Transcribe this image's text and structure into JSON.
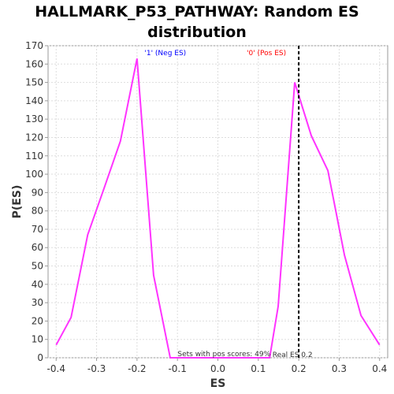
{
  "chart_data": {
    "type": "line",
    "title": "HALLMARK_P53_PATHWAY: Random ES distribution",
    "xlabel": "ES",
    "ylabel": "P(ES)",
    "xlim": [
      -0.42,
      0.42
    ],
    "ylim": [
      0,
      170
    ],
    "xticks": [
      -0.4,
      -0.3,
      -0.2,
      -0.1,
      0.0,
      0.1,
      0.2,
      0.3,
      0.4
    ],
    "xtick_labels": [
      "-0.4",
      "-0.3",
      "-0.2",
      "-0.1",
      "0.0",
      "0.1",
      "0.2",
      "0.3",
      "0.4"
    ],
    "yticks": [
      0,
      10,
      20,
      30,
      40,
      50,
      60,
      70,
      80,
      90,
      100,
      110,
      120,
      130,
      140,
      150,
      160,
      170
    ],
    "ytick_labels": [
      "0",
      "10",
      "20",
      "30",
      "40",
      "50",
      "60",
      "70",
      "80",
      "90",
      "100",
      "110",
      "120",
      "130",
      "140",
      "150",
      "160",
      "170"
    ],
    "grid": true,
    "line_color": "#ff33ff",
    "series": [
      {
        "x": [
          -0.4,
          -0.363,
          -0.322,
          -0.282,
          -0.241,
          -0.2,
          -0.159,
          -0.118,
          -0.077,
          -0.036,
          0.005,
          0.046,
          0.087,
          0.128,
          0.149,
          0.19,
          0.231,
          0.272,
          0.313,
          0.354,
          0.4
        ],
        "values": [
          7,
          22,
          67,
          92,
          118,
          163,
          45,
          0,
          0,
          0,
          0,
          0,
          0,
          0,
          28,
          150,
          121,
          102,
          56,
          23,
          7
        ]
      }
    ],
    "real_es": 0.2,
    "real_es_label": "Real ES 0.2",
    "neg_label": "'1' (Neg ES)",
    "neg_color": "#0000ff",
    "pos_label": "'0' (Pos ES)",
    "pos_color": "#ff0000",
    "pos_scores_label": "Sets with pos scores: 49%"
  }
}
